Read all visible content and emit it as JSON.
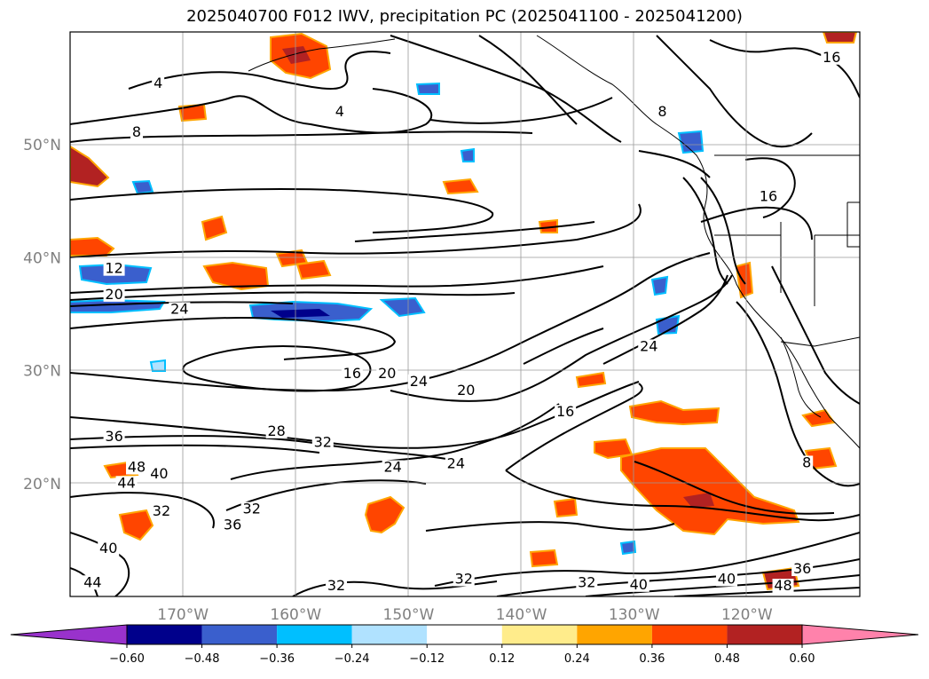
{
  "title": "2025040700 F012 IWV, precipitation PC (2025041100 - 2025041200)",
  "map": {
    "lon_range": [
      -180,
      -110
    ],
    "lat_range": [
      10,
      60
    ],
    "gridlines": true,
    "lat_labels": [
      {
        "value": 50,
        "text": "50°N"
      },
      {
        "value": 40,
        "text": "40°N"
      },
      {
        "value": 30,
        "text": "30°N"
      },
      {
        "value": 20,
        "text": "20°N"
      }
    ],
    "lon_labels": [
      {
        "value": -170,
        "text": "170°W"
      },
      {
        "value": -160,
        "text": "160°W"
      },
      {
        "value": -150,
        "text": "150°W"
      },
      {
        "value": -140,
        "text": "140°W"
      },
      {
        "value": -130,
        "text": "130°W"
      },
      {
        "value": -120,
        "text": "120°W"
      }
    ],
    "contour_labels": [
      {
        "text": "4",
        "lon": -172.2,
        "lat": 55.2
      },
      {
        "text": "4",
        "lon": -156.1,
        "lat": 52.7
      },
      {
        "text": "8",
        "lon": -174.1,
        "lat": 50.9
      },
      {
        "text": "8",
        "lon": -127.5,
        "lat": 52.7
      },
      {
        "text": "16",
        "lon": -112.5,
        "lat": 57.5
      },
      {
        "text": "16",
        "lon": -118.1,
        "lat": 45.2
      },
      {
        "text": "12",
        "lon": -176.1,
        "lat": 38.8
      },
      {
        "text": "20",
        "lon": -176.1,
        "lat": 36.5
      },
      {
        "text": "24",
        "lon": -170.3,
        "lat": 35.2
      },
      {
        "text": "24",
        "lon": -128.7,
        "lat": 31.9
      },
      {
        "text": "16",
        "lon": -155.0,
        "lat": 29.5
      },
      {
        "text": "20",
        "lon": -151.9,
        "lat": 29.5
      },
      {
        "text": "24",
        "lon": -149.1,
        "lat": 28.8
      },
      {
        "text": "20",
        "lon": -144.9,
        "lat": 28.0
      },
      {
        "text": "16",
        "lon": -136.1,
        "lat": 26.1
      },
      {
        "text": "36",
        "lon": -176.1,
        "lat": 23.9
      },
      {
        "text": "28",
        "lon": -161.7,
        "lat": 24.4
      },
      {
        "text": "32",
        "lon": -157.6,
        "lat": 23.4
      },
      {
        "text": "24",
        "lon": -151.4,
        "lat": 21.2
      },
      {
        "text": "24",
        "lon": -145.8,
        "lat": 21.5
      },
      {
        "text": "48",
        "lon": -174.1,
        "lat": 21.2
      },
      {
        "text": "44",
        "lon": -175.0,
        "lat": 19.8
      },
      {
        "text": "40",
        "lon": -172.1,
        "lat": 20.6
      },
      {
        "text": "32",
        "lon": -171.9,
        "lat": 17.3
      },
      {
        "text": "32",
        "lon": -163.9,
        "lat": 17.5
      },
      {
        "text": "36",
        "lon": -165.6,
        "lat": 16.1
      },
      {
        "text": "40",
        "lon": -176.6,
        "lat": 14.0
      },
      {
        "text": "44",
        "lon": -178.0,
        "lat": 11.0
      },
      {
        "text": "32",
        "lon": -156.4,
        "lat": 10.7
      },
      {
        "text": "32",
        "lon": -145.1,
        "lat": 11.3
      },
      {
        "text": "32",
        "lon": -134.2,
        "lat": 11.0
      },
      {
        "text": "40",
        "lon": -129.6,
        "lat": 10.8
      },
      {
        "text": "40",
        "lon": -121.8,
        "lat": 11.3
      },
      {
        "text": "36",
        "lon": -115.1,
        "lat": 12.2
      },
      {
        "text": "48",
        "lon": -116.8,
        "lat": 10.7
      },
      {
        "text": "8",
        "lon": -114.7,
        "lat": 21.6
      }
    ]
  },
  "colorbar": {
    "extend": "both",
    "boundaries": [
      -0.6,
      -0.48,
      -0.36,
      -0.24,
      -0.12,
      0.12,
      0.24,
      0.36,
      0.48,
      0.6
    ],
    "tick_labels": [
      "−0.60",
      "−0.48",
      "−0.36",
      "−0.24",
      "−0.12",
      "0.12",
      "0.24",
      "0.36",
      "0.48",
      "0.60"
    ],
    "colors": [
      "#9932cc",
      "#00008b",
      "#3a5fcd",
      "#00bfff",
      "#b0e2ff",
      "#ffffff",
      "#ffec8b",
      "#ffa500",
      "#ff4500",
      "#b22222",
      "#ff82ab"
    ]
  }
}
